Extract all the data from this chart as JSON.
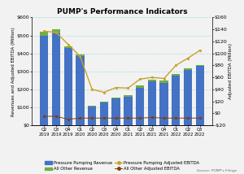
{
  "title": "PUMP's Performance Indicators",
  "source": "Source: PUMP's Filings",
  "categories": [
    "Q2\n2019",
    "Q3\n2019",
    "Q4\n2019",
    "Q1\n2020",
    "Q2\n2020",
    "Q3\n2020",
    "Q4\n2020",
    "Q1\n2021",
    "Q2\n2021",
    "Q3\n2021",
    "Q4\n2021",
    "Q1\n2022",
    "Q2\n2022",
    "Q3\n2022"
  ],
  "pressure_pumping_revenue": [
    500,
    510,
    430,
    385,
    105,
    125,
    148,
    160,
    210,
    245,
    235,
    275,
    310,
    330
  ],
  "all_other_revenue": [
    22,
    22,
    10,
    10,
    5,
    5,
    8,
    8,
    10,
    10,
    12,
    10,
    8,
    5
  ],
  "pressure_pumping_ebitda": [
    137,
    135,
    115,
    95,
    40,
    35,
    43,
    42,
    57,
    60,
    58,
    80,
    92,
    105
  ],
  "all_other_ebitda": [
    -5,
    -5,
    -10,
    -8,
    -8,
    -8,
    -8,
    -8,
    -8,
    -7,
    -8,
    -8,
    -8,
    -8
  ],
  "bar_blue": "#4472C4",
  "bar_green": "#70AD47",
  "line_yellow": "#C9A32A",
  "line_brown": "#843C0C",
  "ylabel_left": "Revenues and Adjusted EBITDA (Million)",
  "ylabel_right": "Adjusted EBITDA (Million)",
  "ylim_left": [
    0,
    600
  ],
  "ylim_right": [
    -20,
    160
  ],
  "yticks_left": [
    0,
    100,
    200,
    300,
    400,
    500,
    600
  ],
  "yticks_right": [
    -20,
    0,
    20,
    40,
    60,
    80,
    100,
    120,
    140,
    160
  ],
  "background_color": "#F2F2F2",
  "grid_color": "#AADDDD"
}
